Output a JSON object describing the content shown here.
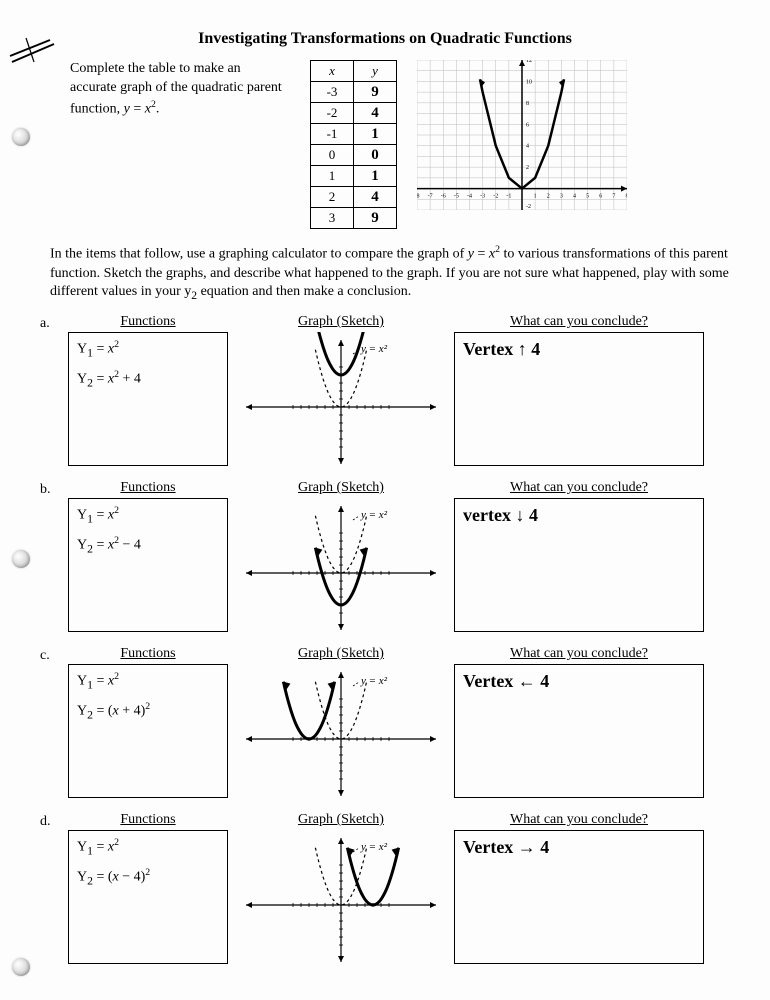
{
  "title": "Investigating Transformations on Quadratic Functions",
  "intro": {
    "text": "Complete the table to make an accurate graph of the quadratic parent function, y = x²."
  },
  "table": {
    "headers": [
      "x",
      "y"
    ],
    "rows": [
      {
        "x": "-3",
        "y": "9"
      },
      {
        "x": "-2",
        "y": "4"
      },
      {
        "x": "-1",
        "y": "1"
      },
      {
        "x": "0",
        "y": "0"
      },
      {
        "x": "1",
        "y": "1"
      },
      {
        "x": "2",
        "y": "4"
      },
      {
        "x": "3",
        "y": "9"
      }
    ]
  },
  "top_graph": {
    "xlim": [
      -8,
      8
    ],
    "ylim": [
      -2,
      12
    ],
    "xtick_labels": [
      "-8",
      "-7",
      "-6",
      "-5",
      "-4",
      "-3",
      "-2",
      "-1",
      "1",
      "2",
      "3",
      "4",
      "5",
      "6",
      "7",
      "8"
    ],
    "ytick_labels": [
      "2",
      "4",
      "6",
      "8",
      "10",
      "12"
    ],
    "grid_color": "#bcbcbc",
    "axis_color": "#000000",
    "curve_color": "#000000",
    "curve_width": 2.5,
    "background": "#ffffff",
    "points": [
      [
        -3.2,
        10.2
      ],
      [
        -3,
        9
      ],
      [
        -2,
        4
      ],
      [
        -1,
        1
      ],
      [
        0,
        0
      ],
      [
        1,
        1
      ],
      [
        2,
        4
      ],
      [
        3,
        9
      ],
      [
        3.2,
        10.2
      ]
    ]
  },
  "middle_paragraph": "In the items that follow, use a graphing calculator to compare the graph of y = x² to various transformations of this parent function. Sketch the graphs, and describe what happened to the graph. If you are not sure what happened, play with some different values in your y₂ equation and then make a conclusion.",
  "column_headers": {
    "functions": "Functions",
    "sketch": "Graph (Sketch)",
    "conclude": "What can you conclude?"
  },
  "items": [
    {
      "label": "a.",
      "y1": "Y₁ = x²",
      "y2": "Y₂ = x² + 4",
      "conclusion": "Vertex  ↑  4",
      "sketch": {
        "vertex_shift_x": 0,
        "vertex_shift_y": 4
      }
    },
    {
      "label": "b.",
      "y1": "Y₁ = x²",
      "y2": "Y₂ = x² − 4",
      "conclusion": "vertex  ↓  4",
      "sketch": {
        "vertex_shift_x": 0,
        "vertex_shift_y": -4
      }
    },
    {
      "label": "c.",
      "y1": "Y₁ = x²",
      "y2": "Y₂ = (x + 4)²",
      "conclusion": "Vertex  ←  4",
      "sketch": {
        "vertex_shift_x": -4,
        "vertex_shift_y": 0
      }
    },
    {
      "label": "d.",
      "y1": "Y₁ = x²",
      "y2": "Y₂ = (x − 4)²",
      "conclusion": "Vertex  →  4",
      "sketch": {
        "vertex_shift_x": 4,
        "vertex_shift_y": 0
      }
    }
  ],
  "sketch_style": {
    "axis_color": "#000000",
    "dotted_color": "#000000",
    "solid_color": "#000000",
    "solid_width": 3,
    "dotted_width": 1.2,
    "label_text": "y = x²",
    "label_fontsize": 11
  },
  "colors": {
    "page_bg": "#fdfdfd",
    "ink": "#000000",
    "handwriting": "#1a1a1a"
  }
}
